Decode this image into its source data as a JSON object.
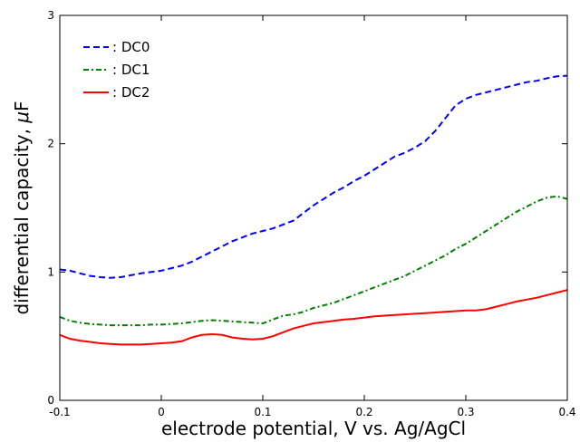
{
  "chart_data": {
    "type": "line",
    "xlabel": "electrode potential, V vs. Ag/AgCl",
    "ylabel_prefix": "differential capacity, ",
    "ylabel_symbol": "μ",
    "ylabel_unit": "F",
    "xlim": [
      -0.1,
      0.4
    ],
    "ylim": [
      0,
      3
    ],
    "xticks": [
      -0.1,
      0,
      0.1,
      0.2,
      0.3,
      0.4
    ],
    "xtick_labels": [
      "-0.1",
      "0",
      "0.1",
      "0.2",
      "0.3",
      "0.4"
    ],
    "yticks": [
      0,
      1,
      2,
      3
    ],
    "ytick_labels": [
      "0",
      "1",
      "2",
      "3"
    ],
    "grid": false,
    "legend_position": "top-left",
    "series": [
      {
        "name": ": DC0",
        "color": "#0000ff",
        "style": "dashed",
        "points": [
          [
            -0.1,
            1.02
          ],
          [
            -0.09,
            1.01
          ],
          [
            -0.08,
            0.99
          ],
          [
            -0.07,
            0.97
          ],
          [
            -0.06,
            0.96
          ],
          [
            -0.05,
            0.955
          ],
          [
            -0.04,
            0.96
          ],
          [
            -0.03,
            0.975
          ],
          [
            -0.02,
            0.99
          ],
          [
            -0.01,
            1.0
          ],
          [
            0.0,
            1.01
          ],
          [
            0.01,
            1.03
          ],
          [
            0.02,
            1.05
          ],
          [
            0.03,
            1.08
          ],
          [
            0.04,
            1.12
          ],
          [
            0.05,
            1.16
          ],
          [
            0.06,
            1.2
          ],
          [
            0.07,
            1.24
          ],
          [
            0.08,
            1.27
          ],
          [
            0.09,
            1.3
          ],
          [
            0.1,
            1.32
          ],
          [
            0.11,
            1.34
          ],
          [
            0.12,
            1.37
          ],
          [
            0.13,
            1.4
          ],
          [
            0.14,
            1.46
          ],
          [
            0.15,
            1.52
          ],
          [
            0.16,
            1.57
          ],
          [
            0.17,
            1.62
          ],
          [
            0.18,
            1.66
          ],
          [
            0.19,
            1.71
          ],
          [
            0.2,
            1.75
          ],
          [
            0.21,
            1.8
          ],
          [
            0.22,
            1.85
          ],
          [
            0.23,
            1.9
          ],
          [
            0.24,
            1.93
          ],
          [
            0.25,
            1.97
          ],
          [
            0.26,
            2.02
          ],
          [
            0.27,
            2.1
          ],
          [
            0.28,
            2.2
          ],
          [
            0.29,
            2.3
          ],
          [
            0.3,
            2.35
          ],
          [
            0.31,
            2.38
          ],
          [
            0.32,
            2.4
          ],
          [
            0.33,
            2.42
          ],
          [
            0.34,
            2.44
          ],
          [
            0.35,
            2.46
          ],
          [
            0.36,
            2.48
          ],
          [
            0.37,
            2.49
          ],
          [
            0.38,
            2.51
          ],
          [
            0.39,
            2.525
          ],
          [
            0.4,
            2.53
          ]
        ]
      },
      {
        "name": ": DC1",
        "color": "#008000",
        "style": "dashdot",
        "points": [
          [
            -0.1,
            0.65
          ],
          [
            -0.09,
            0.62
          ],
          [
            -0.08,
            0.605
          ],
          [
            -0.07,
            0.595
          ],
          [
            -0.06,
            0.59
          ],
          [
            -0.05,
            0.585
          ],
          [
            -0.04,
            0.585
          ],
          [
            -0.03,
            0.585
          ],
          [
            -0.02,
            0.585
          ],
          [
            -0.01,
            0.59
          ],
          [
            0.0,
            0.59
          ],
          [
            0.01,
            0.595
          ],
          [
            0.02,
            0.6
          ],
          [
            0.03,
            0.61
          ],
          [
            0.04,
            0.62
          ],
          [
            0.05,
            0.625
          ],
          [
            0.06,
            0.62
          ],
          [
            0.07,
            0.615
          ],
          [
            0.08,
            0.61
          ],
          [
            0.09,
            0.605
          ],
          [
            0.1,
            0.6
          ],
          [
            0.11,
            0.63
          ],
          [
            0.12,
            0.66
          ],
          [
            0.13,
            0.67
          ],
          [
            0.14,
            0.69
          ],
          [
            0.15,
            0.72
          ],
          [
            0.16,
            0.74
          ],
          [
            0.17,
            0.76
          ],
          [
            0.18,
            0.79
          ],
          [
            0.19,
            0.82
          ],
          [
            0.2,
            0.85
          ],
          [
            0.21,
            0.88
          ],
          [
            0.22,
            0.91
          ],
          [
            0.23,
            0.94
          ],
          [
            0.24,
            0.97
          ],
          [
            0.25,
            1.01
          ],
          [
            0.26,
            1.05
          ],
          [
            0.27,
            1.09
          ],
          [
            0.28,
            1.13
          ],
          [
            0.29,
            1.18
          ],
          [
            0.3,
            1.22
          ],
          [
            0.31,
            1.27
          ],
          [
            0.32,
            1.32
          ],
          [
            0.33,
            1.37
          ],
          [
            0.34,
            1.42
          ],
          [
            0.35,
            1.47
          ],
          [
            0.36,
            1.51
          ],
          [
            0.37,
            1.55
          ],
          [
            0.38,
            1.58
          ],
          [
            0.39,
            1.59
          ],
          [
            0.4,
            1.57
          ]
        ]
      },
      {
        "name": ": DC2",
        "color": "#ff0000",
        "style": "solid",
        "points": [
          [
            -0.1,
            0.51
          ],
          [
            -0.09,
            0.48
          ],
          [
            -0.08,
            0.465
          ],
          [
            -0.07,
            0.455
          ],
          [
            -0.06,
            0.445
          ],
          [
            -0.05,
            0.44
          ],
          [
            -0.04,
            0.435
          ],
          [
            -0.03,
            0.435
          ],
          [
            -0.02,
            0.435
          ],
          [
            -0.01,
            0.44
          ],
          [
            0.0,
            0.445
          ],
          [
            0.01,
            0.45
          ],
          [
            0.02,
            0.46
          ],
          [
            0.03,
            0.49
          ],
          [
            0.04,
            0.51
          ],
          [
            0.05,
            0.515
          ],
          [
            0.06,
            0.51
          ],
          [
            0.07,
            0.49
          ],
          [
            0.08,
            0.48
          ],
          [
            0.09,
            0.475
          ],
          [
            0.1,
            0.48
          ],
          [
            0.11,
            0.5
          ],
          [
            0.12,
            0.53
          ],
          [
            0.13,
            0.56
          ],
          [
            0.14,
            0.58
          ],
          [
            0.15,
            0.6
          ],
          [
            0.16,
            0.61
          ],
          [
            0.17,
            0.62
          ],
          [
            0.18,
            0.63
          ],
          [
            0.19,
            0.635
          ],
          [
            0.2,
            0.645
          ],
          [
            0.21,
            0.655
          ],
          [
            0.22,
            0.66
          ],
          [
            0.23,
            0.665
          ],
          [
            0.24,
            0.67
          ],
          [
            0.25,
            0.675
          ],
          [
            0.26,
            0.68
          ],
          [
            0.27,
            0.685
          ],
          [
            0.28,
            0.69
          ],
          [
            0.29,
            0.695
          ],
          [
            0.3,
            0.7
          ],
          [
            0.31,
            0.7
          ],
          [
            0.32,
            0.71
          ],
          [
            0.33,
            0.73
          ],
          [
            0.34,
            0.75
          ],
          [
            0.35,
            0.77
          ],
          [
            0.36,
            0.785
          ],
          [
            0.37,
            0.8
          ],
          [
            0.38,
            0.82
          ],
          [
            0.39,
            0.84
          ],
          [
            0.4,
            0.86
          ]
        ]
      }
    ]
  }
}
